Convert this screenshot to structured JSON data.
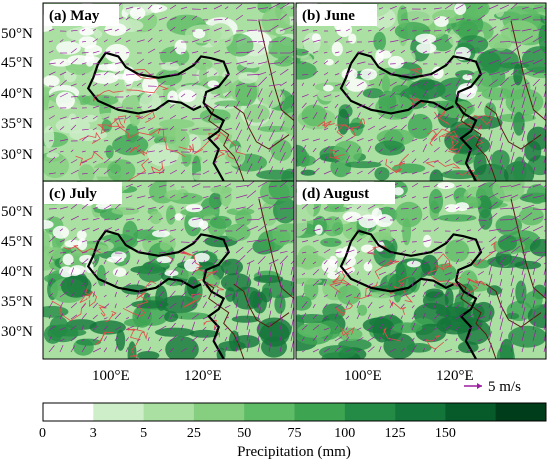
{
  "figure": {
    "panels": [
      {
        "id": "may",
        "label": "(a) May",
        "intensity": 0.35
      },
      {
        "id": "june",
        "label": "(b) June",
        "intensity": 0.65
      },
      {
        "id": "july",
        "label": "(c) July",
        "intensity": 0.75
      },
      {
        "id": "august",
        "label": "(d) August",
        "intensity": 0.7
      }
    ],
    "lat_ticks": [
      "50°N",
      "45°N",
      "40°N",
      "35°N",
      "30°N"
    ],
    "lon_ticks": [
      "100°E",
      "120°E"
    ],
    "reference_vector": "5 m/s",
    "colorbar": {
      "title": "Precipitation (mm)",
      "ticks": [
        "0",
        "3",
        "5",
        "25",
        "50",
        "75",
        "100",
        "125",
        "150"
      ],
      "colors": [
        "#ffffff",
        "#cdeec8",
        "#abe0a3",
        "#86cf80",
        "#5fbc66",
        "#3da552",
        "#238b45",
        "#14753a",
        "#075a2a",
        "#003d1b"
      ]
    },
    "colors": {
      "vector": "#9a1fa0",
      "province": "#e34a4a",
      "boundary": "#000000",
      "coast": "#5a1a10"
    }
  }
}
